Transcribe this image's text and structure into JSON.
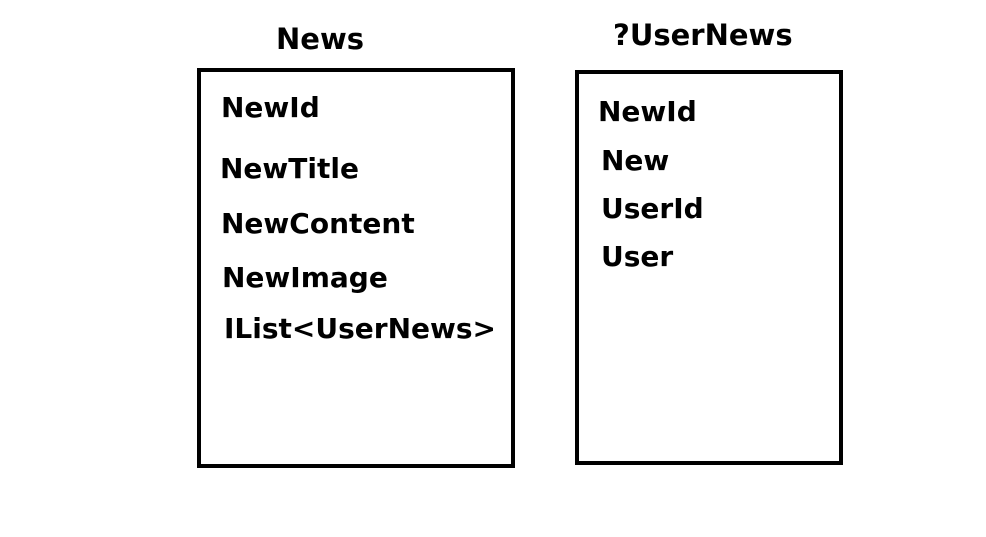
{
  "entities": [
    {
      "title": "News",
      "fields": [
        "NewId",
        "NewTitle",
        "NewContent",
        "NewImage",
        "IList<UserNews>"
      ]
    },
    {
      "title": "?UserNews",
      "fields": [
        "NewId",
        "New",
        "UserId",
        "User"
      ]
    }
  ]
}
